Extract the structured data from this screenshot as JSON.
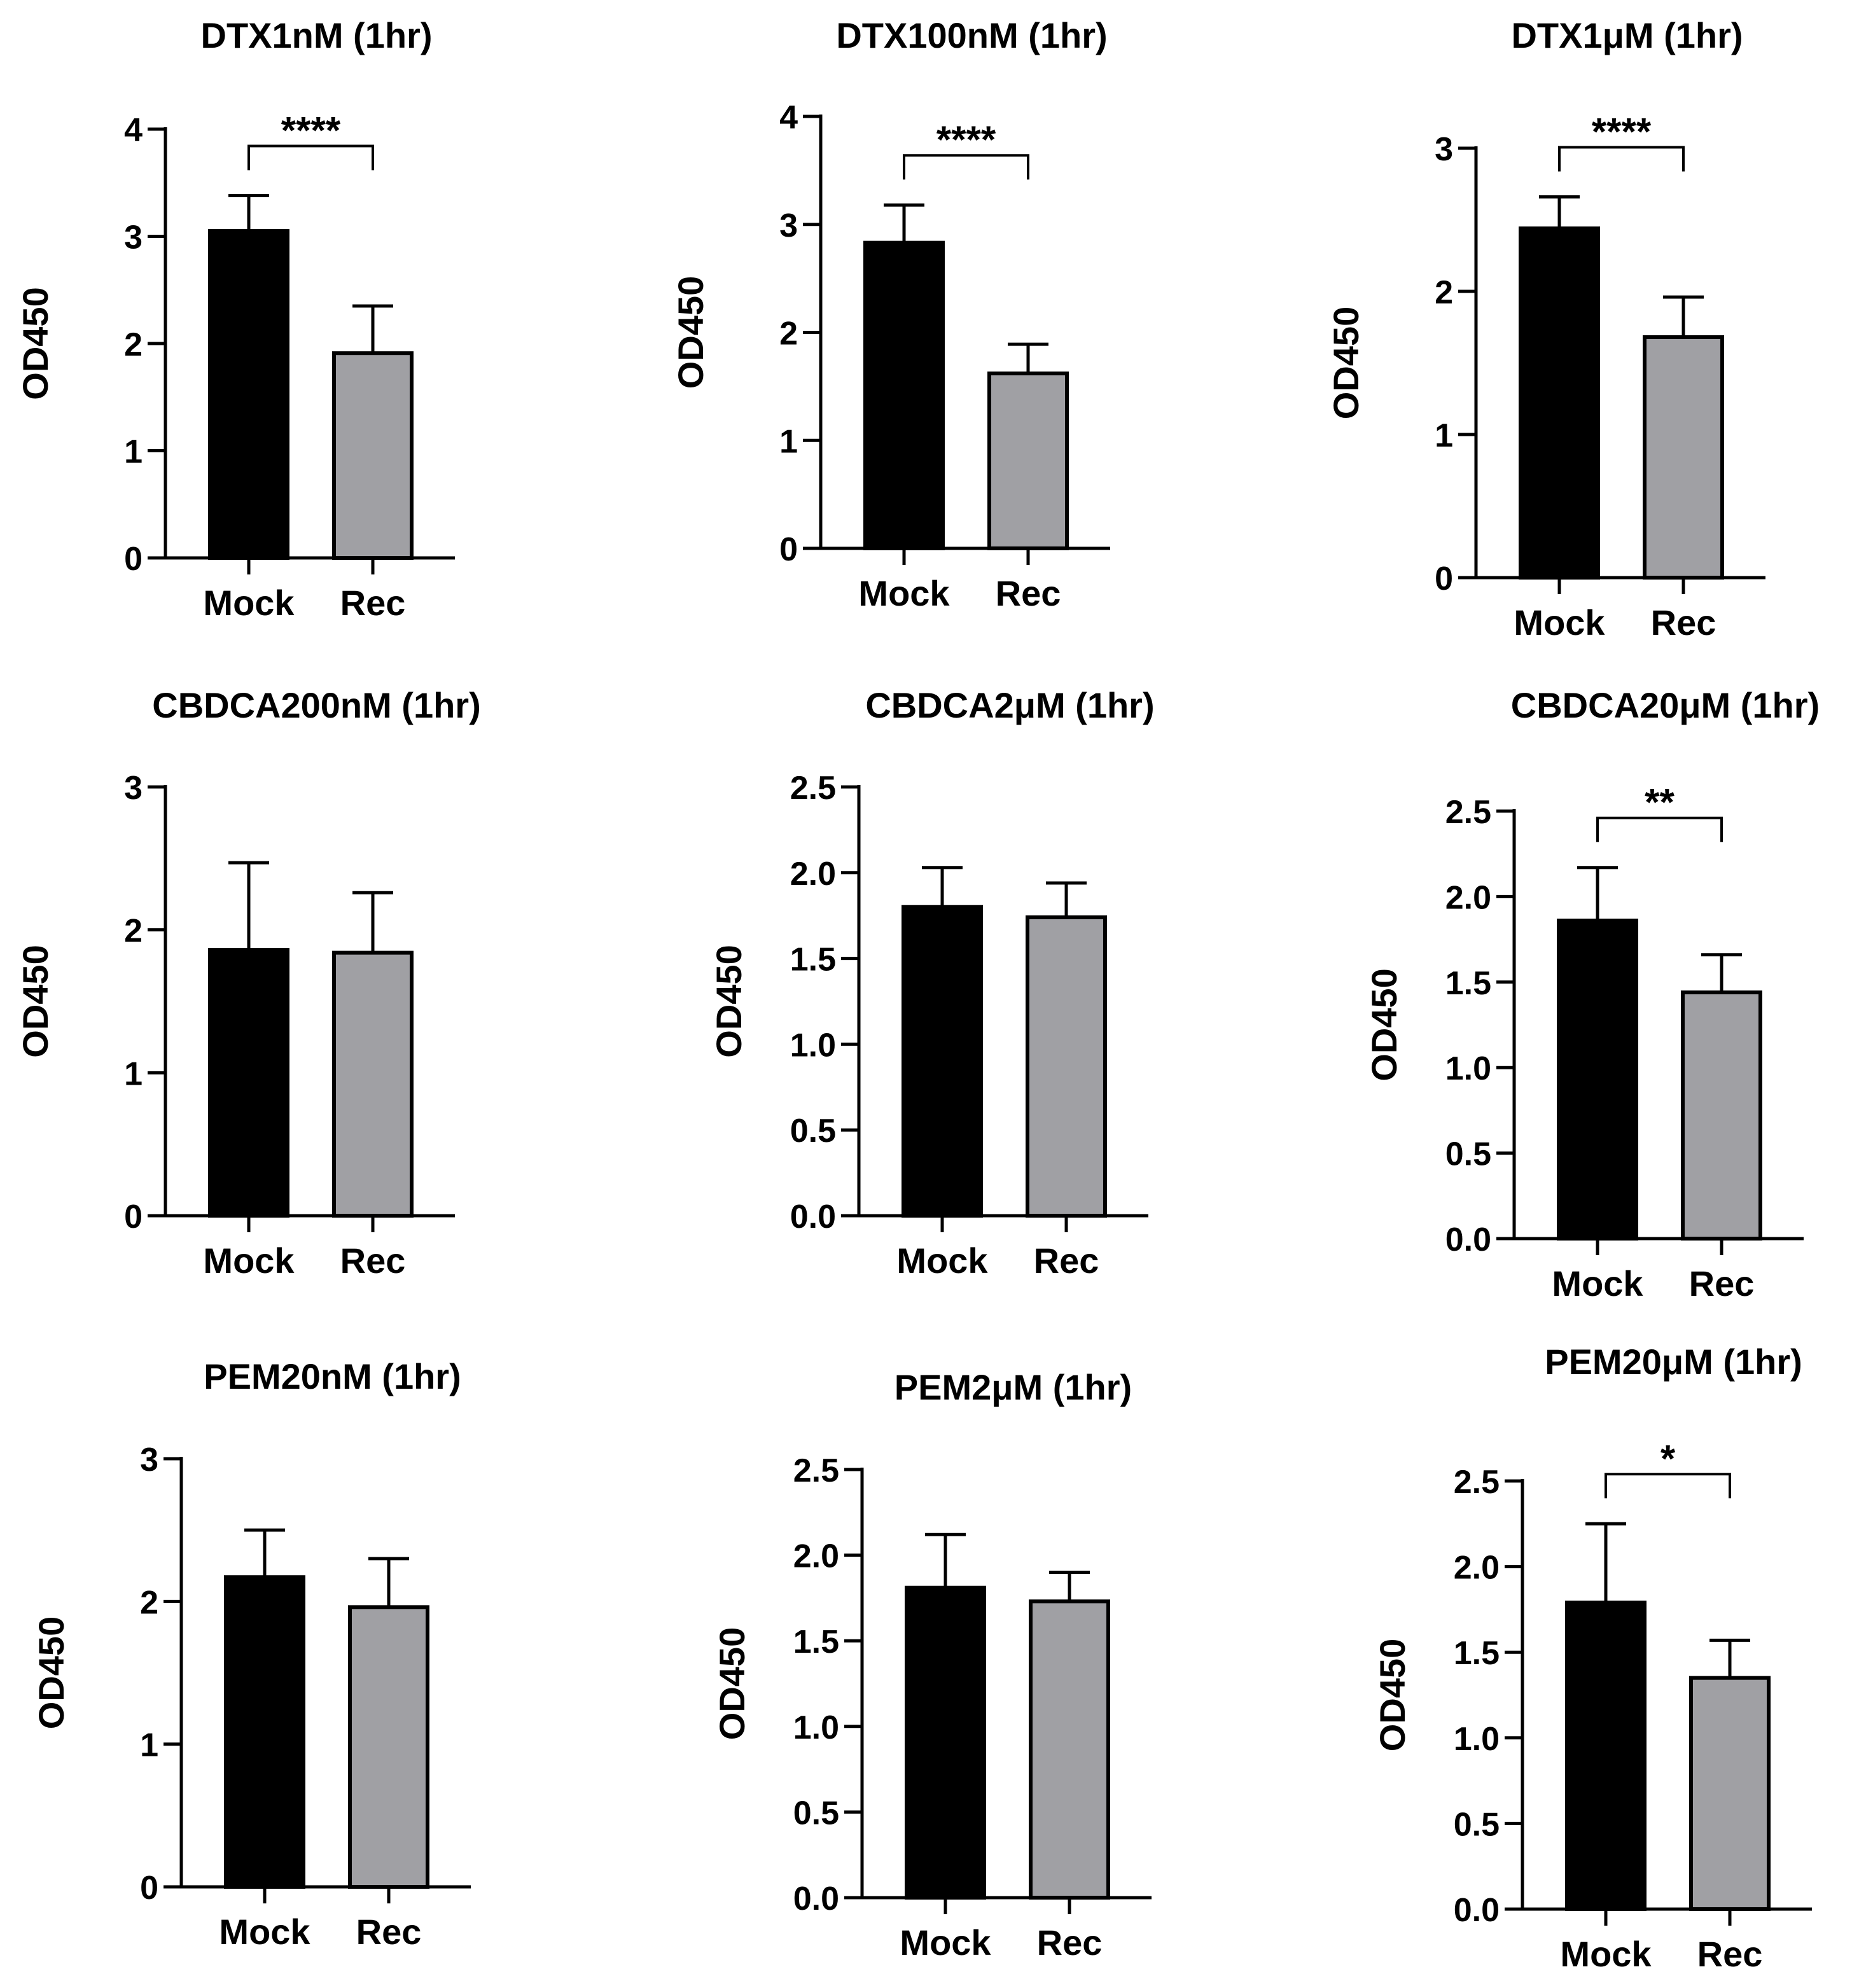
{
  "figure": {
    "panel_count": 9,
    "common_categories": [
      "Mock",
      "Rec"
    ],
    "common_ylabel": "OD450"
  },
  "colors": {
    "mock": "#000000",
    "rec": "#a0a0a4",
    "axis": "#000000"
  },
  "chart_data": [
    {
      "type": "bar",
      "title": "DTX1nM (1hr)",
      "ylabel": "OD450",
      "xlabel": "",
      "categories": [
        "Mock",
        "Rec"
      ],
      "values": [
        3.05,
        1.91
      ],
      "errors": [
        0.33,
        0.44
      ],
      "ylim": [
        0,
        4
      ],
      "yticks": [
        "0",
        "1",
        "2",
        "3",
        "4"
      ],
      "significance": "****"
    },
    {
      "type": "bar",
      "title": "DTX100nM (1hr)",
      "ylabel": "OD450",
      "xlabel": "",
      "categories": [
        "Mock",
        "Rec"
      ],
      "values": [
        2.83,
        1.62
      ],
      "errors": [
        0.35,
        0.27
      ],
      "ylim": [
        0,
        4
      ],
      "yticks": [
        "0",
        "1",
        "2",
        "3",
        "4"
      ],
      "significance": "****"
    },
    {
      "type": "bar",
      "title": "DTX1μM (1hr)",
      "ylabel": "OD450",
      "xlabel": "",
      "categories": [
        "Mock",
        "Rec"
      ],
      "values": [
        2.44,
        1.68
      ],
      "errors": [
        0.22,
        0.28
      ],
      "ylim": [
        0,
        3
      ],
      "yticks": [
        "0",
        "1",
        "2",
        "3"
      ],
      "significance": "****"
    },
    {
      "type": "bar",
      "title": "CBDCA200nM (1hr)",
      "ylabel": "OD450",
      "xlabel": "",
      "categories": [
        "Mock",
        "Rec"
      ],
      "values": [
        1.86,
        1.84
      ],
      "errors": [
        0.61,
        0.42
      ],
      "ylim": [
        0,
        3
      ],
      "yticks": [
        "0",
        "1",
        "2",
        "3"
      ],
      "significance": ""
    },
    {
      "type": "bar",
      "title": "CBDCA2μM (1hr)",
      "ylabel": "OD450",
      "xlabel": "",
      "categories": [
        "Mock",
        "Rec"
      ],
      "values": [
        1.8,
        1.74
      ],
      "errors": [
        0.23,
        0.2
      ],
      "ylim": [
        0,
        2.5
      ],
      "yticks": [
        "0.0",
        "0.5",
        "1.0",
        "1.5",
        "2.0",
        "2.5"
      ],
      "significance": ""
    },
    {
      "type": "bar",
      "title": "CBDCA20μM (1hr)",
      "ylabel": "OD450",
      "xlabel": "",
      "categories": [
        "Mock",
        "Rec"
      ],
      "values": [
        1.86,
        1.44
      ],
      "errors": [
        0.31,
        0.22
      ],
      "ylim": [
        0,
        2.5
      ],
      "yticks": [
        "0.0",
        "0.5",
        "1.0",
        "1.5",
        "2.0",
        "2.5"
      ],
      "significance": "**"
    },
    {
      "type": "bar",
      "title": "PEM20nM (1hr)",
      "ylabel": "OD450",
      "xlabel": "",
      "categories": [
        "Mock",
        "Rec"
      ],
      "values": [
        2.17,
        1.96
      ],
      "errors": [
        0.33,
        0.34
      ],
      "ylim": [
        0,
        3
      ],
      "yticks": [
        "0",
        "1",
        "2",
        "3"
      ],
      "significance": ""
    },
    {
      "type": "bar",
      "title": "PEM2μM (1hr)",
      "ylabel": "OD450",
      "xlabel": "",
      "categories": [
        "Mock",
        "Rec"
      ],
      "values": [
        1.81,
        1.73
      ],
      "errors": [
        0.31,
        0.17
      ],
      "ylim": [
        0,
        2.5
      ],
      "yticks": [
        "0.0",
        "0.5",
        "1.0",
        "1.5",
        "2.0",
        "2.5"
      ],
      "significance": ""
    },
    {
      "type": "bar",
      "title": "PEM20μM (1hr)",
      "ylabel": "OD450",
      "xlabel": "",
      "categories": [
        "Mock",
        "Rec"
      ],
      "values": [
        1.79,
        1.35
      ],
      "errors": [
        0.46,
        0.22
      ],
      "ylim": [
        0,
        2.5
      ],
      "yticks": [
        "0.0",
        "0.5",
        "1.0",
        "1.5",
        "2.0",
        "2.5"
      ],
      "significance": "*"
    }
  ]
}
